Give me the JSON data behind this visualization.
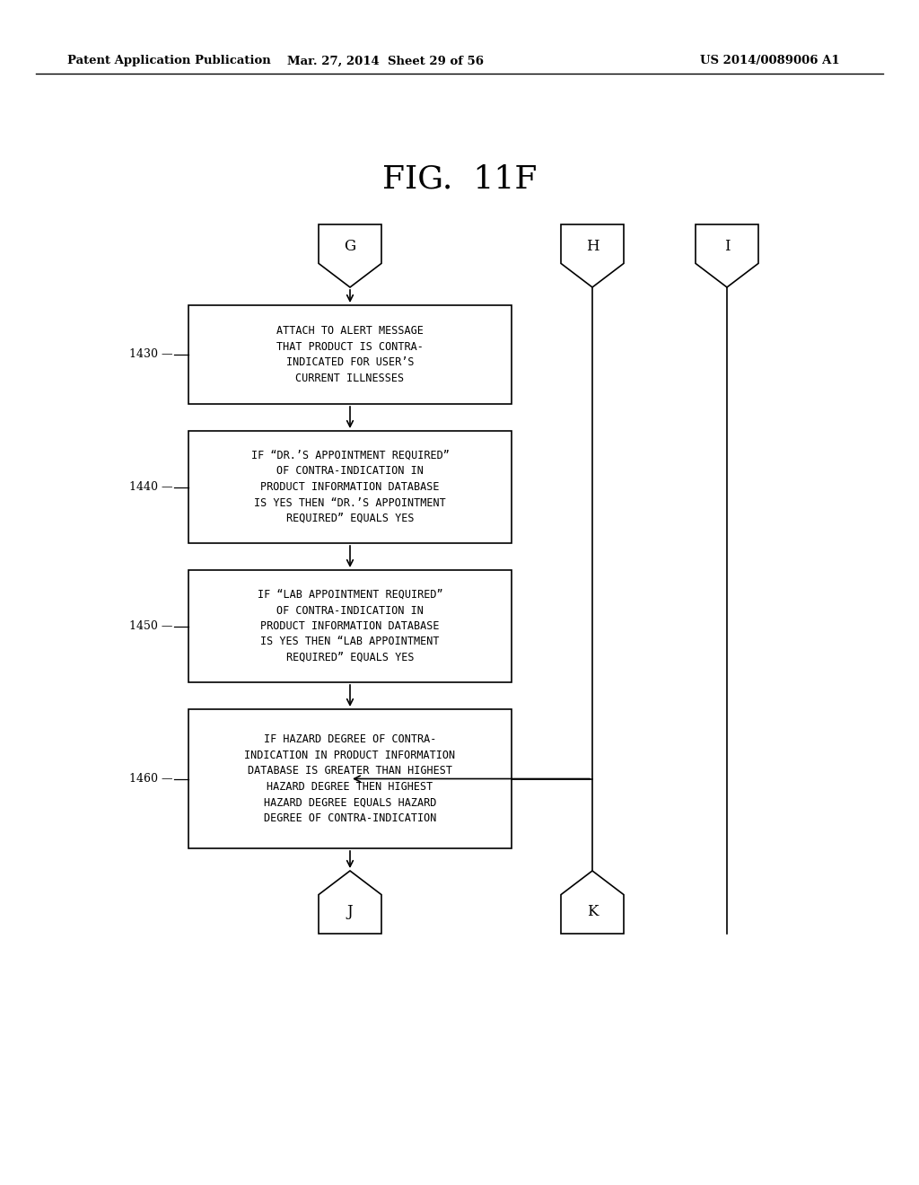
{
  "fig_title": "FIG.  11F",
  "header_left": "Patent Application Publication",
  "header_mid": "Mar. 27, 2014  Sheet 29 of 56",
  "header_right": "US 2014/0089006 A1",
  "bg_color": "#ffffff",
  "box1430_text": "ATTACH TO ALERT MESSAGE\nTHAT PRODUCT IS CONTRA-\nINDICATED FOR USER’S\nCURRENT ILLNESSES",
  "box1440_text": "IF “DR.’S APPOINTMENT REQUIRED”\nOF CONTRA-INDICATION IN\nPRODUCT INFORMATION DATABASE\nIS YES THEN “DR.’S APPOINTMENT\nREQUIRED” EQUALS YES",
  "box1450_text": "IF “LAB APPOINTMENT REQUIRED”\nOF CONTRA-INDICATION IN\nPRODUCT INFORMATION DATABASE\nIS YES THEN “LAB APPOINTMENT\nREQUIRED” EQUALS YES",
  "box1460_text": "IF HAZARD DEGREE OF CONTRA-\nINDICATION IN PRODUCT INFORMATION\nDATABASE IS GREATER THAN HIGHEST\nHAZARD DEGREE THEN HIGHEST\nHAZARD DEGREE EQUALS HAZARD\nDEGREE OF CONTRA-INDICATION"
}
